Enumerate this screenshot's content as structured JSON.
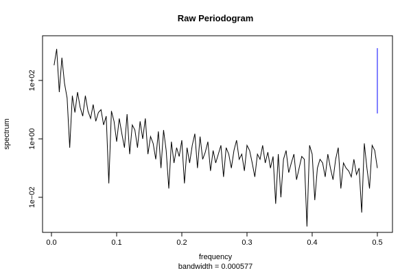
{
  "chart_data": {
    "type": "line",
    "title": "Raw Periodogram",
    "xlabel": "frequency",
    "subtitle": "bandwidth = 0.000577",
    "ylabel": "spectrum",
    "log_y": true,
    "color": "#000000",
    "xlim": [
      -0.0137,
      0.5232
    ],
    "ylim": [
      0.00063,
      3388
    ],
    "xticks": [
      {
        "value": 0,
        "label": "0.0"
      },
      {
        "value": 0.1,
        "label": "0.1"
      },
      {
        "value": 0.2,
        "label": "0.2"
      },
      {
        "value": 0.3,
        "label": "0.3"
      },
      {
        "value": 0.4,
        "label": "0.4"
      },
      {
        "value": 0.5,
        "label": "0.5"
      }
    ],
    "yticks": [
      {
        "value": 0.01,
        "label": "1e−02"
      },
      {
        "value": 1,
        "label": "1e+00"
      },
      {
        "value": 100,
        "label": "1e+02"
      }
    ],
    "ci": {
      "x": 0.5,
      "upper": 1275,
      "lower": 7.4,
      "color": "#0000ff"
    },
    "x": [
      0.004,
      0.008,
      0.012,
      0.016,
      0.02,
      0.024,
      0.028,
      0.032,
      0.036,
      0.04,
      0.044,
      0.048,
      0.052,
      0.056,
      0.06,
      0.064,
      0.068,
      0.072,
      0.076,
      0.08,
      0.084,
      0.088,
      0.092,
      0.096,
      0.1,
      0.104,
      0.108,
      0.112,
      0.116,
      0.12,
      0.124,
      0.128,
      0.132,
      0.136,
      0.14,
      0.144,
      0.148,
      0.152,
      0.156,
      0.16,
      0.164,
      0.168,
      0.172,
      0.176,
      0.18,
      0.184,
      0.188,
      0.192,
      0.196,
      0.2,
      0.204,
      0.208,
      0.212,
      0.216,
      0.22,
      0.224,
      0.228,
      0.232,
      0.236,
      0.24,
      0.244,
      0.248,
      0.252,
      0.256,
      0.26,
      0.264,
      0.268,
      0.272,
      0.276,
      0.28,
      0.284,
      0.288,
      0.292,
      0.296,
      0.3,
      0.304,
      0.308,
      0.312,
      0.316,
      0.32,
      0.324,
      0.328,
      0.332,
      0.336,
      0.34,
      0.344,
      0.348,
      0.352,
      0.356,
      0.36,
      0.364,
      0.368,
      0.372,
      0.376,
      0.38,
      0.384,
      0.388,
      0.392,
      0.396,
      0.4,
      0.404,
      0.408,
      0.412,
      0.416,
      0.42,
      0.424,
      0.428,
      0.432,
      0.436,
      0.44,
      0.444,
      0.448,
      0.452,
      0.456,
      0.46,
      0.464,
      0.468,
      0.472,
      0.476,
      0.48,
      0.484,
      0.488,
      0.492,
      0.496,
      0.5
    ],
    "values": [
      330,
      1200,
      40,
      600,
      80,
      25,
      0.5,
      30,
      8,
      40,
      12,
      6,
      30,
      9,
      5,
      15,
      4,
      8,
      10,
      3,
      6,
      0.03,
      9,
      4,
      0.8,
      5,
      1.5,
      0.5,
      7,
      0.3,
      3,
      2,
      0.5,
      4,
      1,
      5,
      0.3,
      1.2,
      0.7,
      0.2,
      1.8,
      0.1,
      2,
      0.4,
      0.02,
      0.8,
      0.15,
      0.5,
      0.25,
      0.9,
      0.03,
      0.5,
      0.15,
      0.6,
      1.5,
      0.1,
      1.2,
      0.2,
      0.35,
      0.8,
      0.08,
      0.4,
      0.15,
      0.3,
      0.6,
      0.05,
      0.5,
      0.3,
      0.1,
      0.4,
      0.9,
      0.2,
      0.3,
      0.08,
      0.6,
      0.4,
      0.15,
      0.05,
      0.3,
      0.2,
      0.6,
      0.15,
      0.35,
      0.1,
      0.25,
      0.006,
      0.3,
      0.01,
      0.2,
      0.4,
      0.07,
      0.15,
      0.3,
      0.04,
      0.1,
      0.25,
      0.2,
      0.001,
      0.6,
      0.3,
      0.008,
      0.1,
      0.2,
      0.15,
      0.05,
      0.3,
      0.1,
      0.04,
      0.2,
      0.5,
      0.02,
      0.15,
      0.1,
      0.08,
      0.05,
      0.2,
      0.06,
      0.1,
      0.003,
      0.7,
      0.1,
      0.02,
      0.6,
      0.4,
      0.1
    ]
  }
}
